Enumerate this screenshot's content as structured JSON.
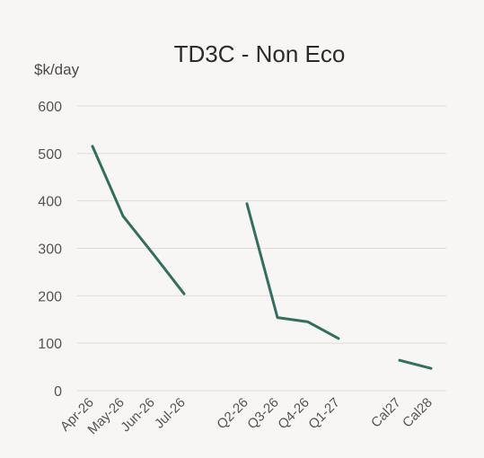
{
  "chart_data": {
    "type": "line",
    "title": "TD3C - Non Eco",
    "ylabel": "$k/day",
    "xlabel": "",
    "ylim": [
      0,
      600
    ],
    "yticks": [
      0,
      100,
      200,
      300,
      400,
      500,
      600
    ],
    "grid": true,
    "legend": "none",
    "line_color": "#336e5e",
    "categories": [
      "Apr-26",
      "May-26",
      "Jun-26",
      "Jul-26",
      "Q2-26",
      "Q3-26",
      "Q4-26",
      "Q1-27",
      "Cal27",
      "Cal28"
    ],
    "series": [
      {
        "points": [
          {
            "x": "Apr-26",
            "y": 515
          },
          {
            "x": "May-26",
            "y": 368
          },
          {
            "x": "Jun-26",
            "y": 287
          },
          {
            "x": "Jul-26",
            "y": 204
          }
        ]
      },
      {
        "points": [
          {
            "x": "Q2-26",
            "y": 394
          },
          {
            "x": "Q3-26",
            "y": 154
          },
          {
            "x": "Q4-26",
            "y": 145
          },
          {
            "x": "Q1-27",
            "y": 110
          }
        ]
      },
      {
        "points": [
          {
            "x": "Cal27",
            "y": 64
          },
          {
            "x": "Cal28",
            "y": 47
          }
        ]
      }
    ]
  }
}
